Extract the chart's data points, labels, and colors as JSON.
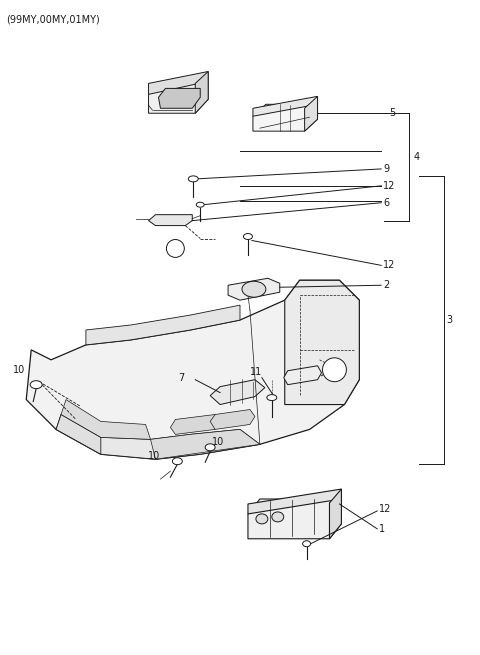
{
  "title": "(99MY,00MY,01MY)",
  "bg": "#ffffff",
  "lc": "#1a1a1a",
  "tc": "#1a1a1a",
  "fig_w": 4.8,
  "fig_h": 6.55,
  "dpi": 100
}
